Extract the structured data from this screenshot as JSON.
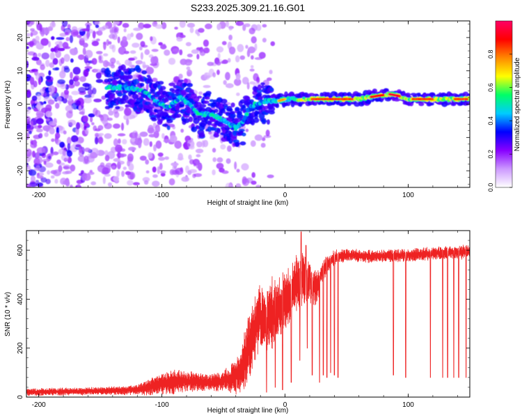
{
  "figure": {
    "title": "S233.2025.309.21.16.G01"
  },
  "chart_data": [
    {
      "type": "heatmap",
      "name": "spectrogram",
      "xlabel": "Height of straight line (km)",
      "ylabel": "Frequency (Hz)",
      "xlim": [
        -210,
        150
      ],
      "ylim": [
        -25,
        25
      ],
      "xticks": [
        -200,
        -100,
        0,
        100
      ],
      "yticks": [
        -20,
        -10,
        0,
        10,
        20
      ],
      "ridge": {
        "description": "dominant frequency track",
        "x": [
          -145,
          -130,
          -115,
          -105,
          -95,
          -85,
          -78,
          -70,
          -60,
          -50,
          -40,
          -35,
          -30,
          -25,
          -15,
          -5,
          0,
          10,
          20,
          40,
          60,
          75,
          85,
          92,
          100,
          110,
          130,
          150
        ],
        "y": [
          5,
          5,
          4,
          1,
          -1,
          2,
          0,
          -3,
          -3,
          -5,
          -7,
          -6,
          -2,
          0,
          1,
          1,
          1.5,
          1.5,
          1.5,
          1.5,
          1.5,
          2.5,
          3,
          2.5,
          1.5,
          1.5,
          1.5,
          1.5
        ]
      },
      "colorbar": {
        "label": "Normalized spectral amplitude",
        "range": [
          0,
          1
        ],
        "ticks": [
          "0.0",
          "0.2",
          "0.4",
          "0.6",
          "0.8"
        ],
        "tick_values": [
          0.0,
          0.2,
          0.4,
          0.6,
          0.8
        ],
        "colors": [
          "#ffffff",
          "#cc99ff",
          "#8800ff",
          "#0000ff",
          "#00ccff",
          "#00ff66",
          "#ffff00",
          "#ff8800",
          "#ff0000",
          "#ff0066"
        ]
      }
    },
    {
      "type": "line",
      "name": "snr",
      "xlabel": "Height of straight line (km)",
      "ylabel": "SNR (10 * v/v)",
      "xlim": [
        -210,
        150
      ],
      "ylim": [
        0,
        680
      ],
      "xticks": [
        -200,
        -100,
        0,
        100
      ],
      "yticks": [
        0,
        200,
        400,
        600
      ],
      "color": "#ee2222",
      "envelope": {
        "x": [
          -210,
          -150,
          -120,
          -110,
          -100,
          -90,
          -80,
          -60,
          -45,
          -35,
          -30,
          -25,
          -20,
          -15,
          -10,
          -5,
          0,
          5,
          10,
          15,
          20,
          25,
          30,
          35,
          40,
          50,
          70,
          100,
          130,
          150
        ],
        "mean": [
          20,
          25,
          30,
          40,
          55,
          65,
          65,
          60,
          70,
          110,
          200,
          280,
          330,
          300,
          340,
          370,
          400,
          430,
          470,
          480,
          470,
          440,
          510,
          545,
          570,
          580,
          575,
          580,
          590,
          595
        ],
        "amp": [
          15,
          15,
          20,
          30,
          45,
          50,
          40,
          35,
          50,
          90,
          140,
          140,
          120,
          150,
          140,
          120,
          120,
          120,
          100,
          110,
          80,
          70,
          45,
          35,
          30,
          25,
          25,
          25,
          25,
          30
        ]
      },
      "spikes": {
        "description": "sharp drops in SNR",
        "x": [
          -15,
          -8,
          -2,
          5,
          12,
          18,
          22,
          28,
          31,
          34,
          37,
          40,
          43,
          88,
          98,
          118,
          128,
          132,
          137,
          141,
          147
        ],
        "min": [
          20,
          40,
          30,
          60,
          150,
          200,
          90,
          60,
          90,
          80,
          100,
          90,
          80,
          90,
          80,
          80,
          80,
          80,
          80,
          80,
          80
        ]
      },
      "peaks": {
        "x": [
          13,
          17,
          20
        ],
        "max": [
          675,
          620,
          540
        ]
      }
    }
  ]
}
